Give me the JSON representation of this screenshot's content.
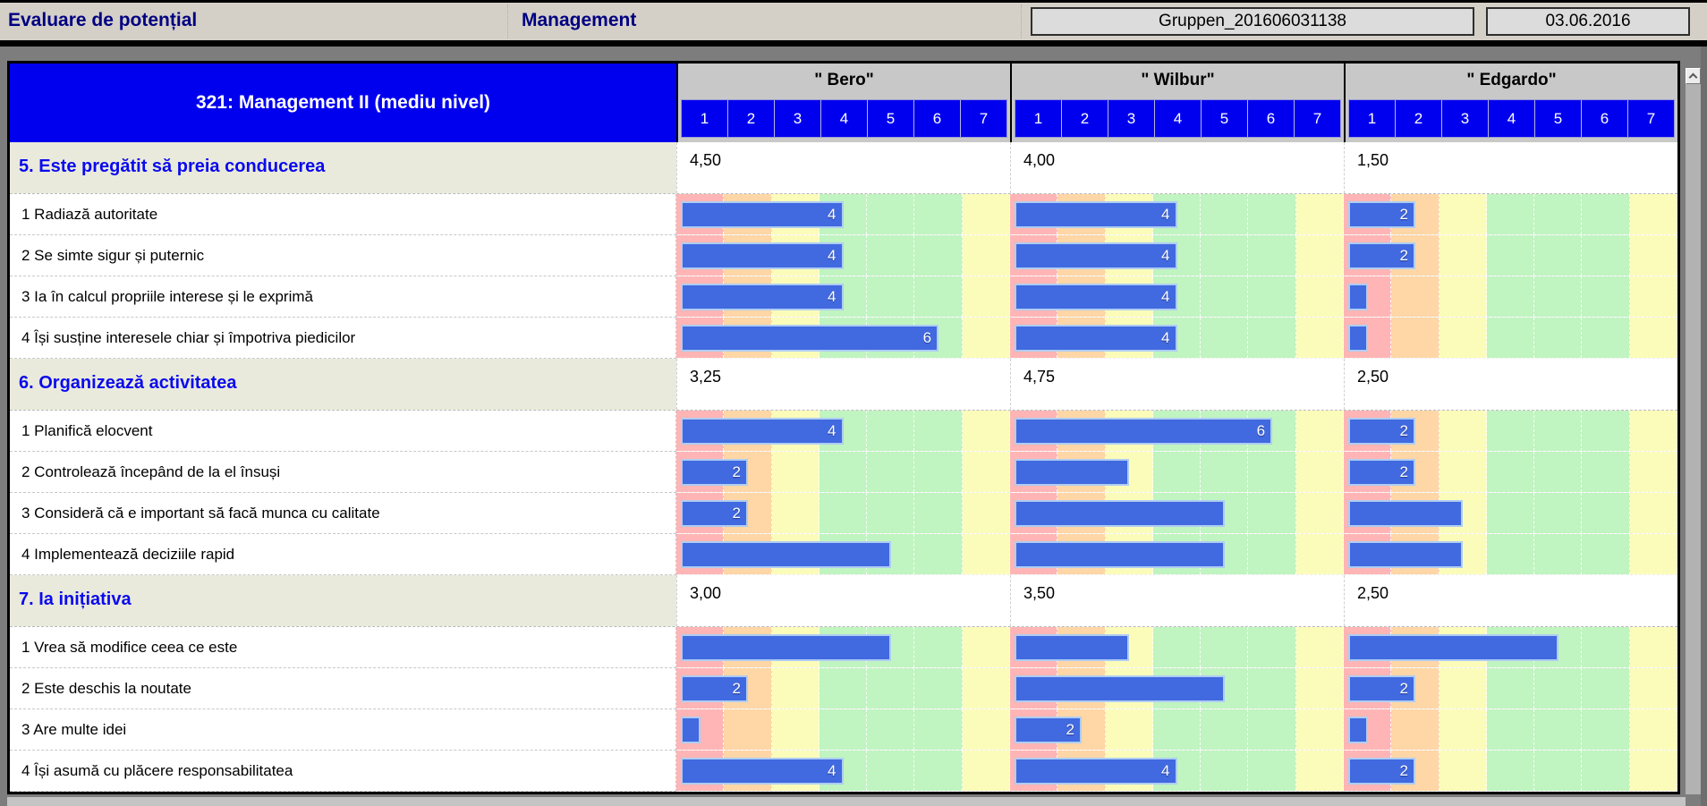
{
  "header": {
    "title": "Evaluare de potențial",
    "subtitle": "Management",
    "group_box": "Gruppen_201606031138",
    "date_box": "03.06.2016"
  },
  "table": {
    "title": "321: Management II (mediu nivel)",
    "people": [
      "\" Bero\"",
      "\" Wilbur\"",
      "\" Edgardo\""
    ],
    "scale": [
      "1",
      "2",
      "3",
      "4",
      "5",
      "6",
      "7"
    ],
    "scale_min": 1,
    "scale_max": 7,
    "label_rule": "bar value label shown only for even scores"
  },
  "sections": [
    {
      "label": "5. Este pregătit să preia conducerea",
      "averages": [
        "4,50",
        "4,00",
        "1,50"
      ],
      "items": [
        {
          "label": "1 Radiază autoritate",
          "values": [
            4,
            4,
            2
          ]
        },
        {
          "label": "2 Se simte sigur și puternic",
          "values": [
            4,
            4,
            2
          ]
        },
        {
          "label": "3 Ia în calcul propriile interese și le exprimă",
          "values": [
            4,
            4,
            1
          ]
        },
        {
          "label": "4 Își susține interesele chiar și împotriva piedicilor",
          "values": [
            6,
            4,
            1
          ]
        }
      ]
    },
    {
      "label": "6. Organizează activitatea",
      "averages": [
        "3,25",
        "4,75",
        "2,50"
      ],
      "items": [
        {
          "label": "1 Planifică elocvent",
          "values": [
            4,
            6,
            2
          ]
        },
        {
          "label": "2 Controlează începând de la el însuși",
          "values": [
            2,
            3,
            2
          ]
        },
        {
          "label": "3 Consideră că e important să facă munca cu calitate",
          "values": [
            2,
            5,
            3
          ]
        },
        {
          "label": "4 Implementează deciziile rapid",
          "values": [
            5,
            5,
            3
          ]
        }
      ]
    },
    {
      "label": "7. Ia inițiativa",
      "averages": [
        "3,00",
        "3,50",
        "2,50"
      ],
      "items": [
        {
          "label": "1 Vrea să modifice ceea ce este",
          "values": [
            5,
            3,
            5
          ]
        },
        {
          "label": "2 Este deschis la noutate",
          "values": [
            2,
            5,
            2
          ]
        },
        {
          "label": "3 Are multe idei",
          "values": [
            1,
            2,
            1
          ]
        },
        {
          "label": "4 Își asumă cu plăcere responsabilitatea",
          "values": [
            4,
            4,
            2
          ]
        }
      ]
    }
  ],
  "colors": {
    "bar": "#4169e0",
    "bar_border": "#aecdf2",
    "scale_blue": "#0000ee",
    "header_navy": "#000080",
    "category_bg": "#eaeadc",
    "bands": [
      "#ffb5b5",
      "#ffd6a6",
      "#fcfcba",
      "#c0f4c0",
      "#c0f4c0",
      "#c0f4c0",
      "#fcfcba"
    ]
  }
}
